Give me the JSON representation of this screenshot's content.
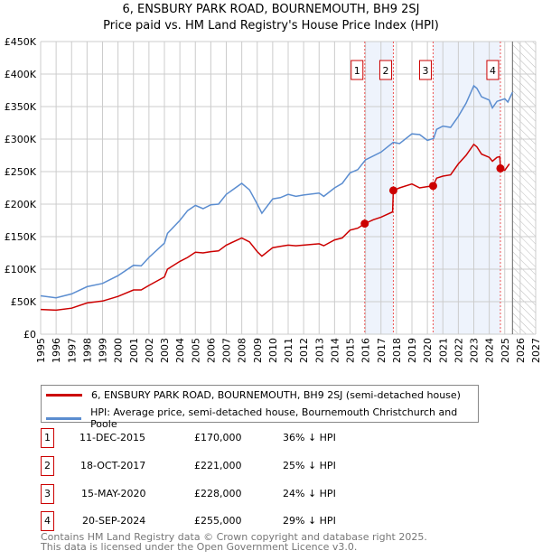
{
  "title": "6, ENSBURY PARK ROAD, BOURNEMOUTH, BH9 2SJ",
  "subtitle": "Price paid vs. HM Land Registry's House Price Index (HPI)",
  "chart_data": {
    "type": "line",
    "xlim": [
      1995,
      2027
    ],
    "ylim": [
      0,
      450000
    ],
    "yticks": [
      "£0",
      "£50K",
      "£100K",
      "£150K",
      "£200K",
      "£250K",
      "£300K",
      "£350K",
      "£400K",
      "£450K"
    ],
    "xticks": [
      "1995",
      "1996",
      "1997",
      "1998",
      "1999",
      "2000",
      "2001",
      "2002",
      "2003",
      "2004",
      "2005",
      "2006",
      "2007",
      "2008",
      "2009",
      "2010",
      "2011",
      "2012",
      "2013",
      "2014",
      "2015",
      "2016",
      "2017",
      "2018",
      "2019",
      "2020",
      "2021",
      "2022",
      "2023",
      "2024",
      "2025",
      "2026",
      "2027"
    ],
    "forecast_start": 2025.5,
    "shaded": [
      [
        2015.95,
        2017.8
      ],
      [
        2020.37,
        2024.72
      ]
    ],
    "series": [
      {
        "name": "6, ENSBURY PARK ROAD, BOURNEMOUTH, BH9 2SJ (semi-detached house)",
        "color": "#cc0000",
        "x": [
          1995,
          1996,
          1997,
          1998,
          1999,
          2000,
          2001,
          2001.5,
          2002,
          2003,
          2003.2,
          2004,
          2004.5,
          2005,
          2005.5,
          2006,
          2006.5,
          2007,
          2008,
          2008.5,
          2009,
          2009.3,
          2010,
          2010.5,
          2011,
          2011.5,
          2012,
          2013,
          2013.3,
          2014,
          2014.5,
          2015,
          2015.5,
          2015.95,
          2016.5,
          2017,
          2017.75,
          2017.8,
          2018.2,
          2019,
          2019.5,
          2020,
          2020.37,
          2020.6,
          2021,
          2021.5,
          2022,
          2022.5,
          2023,
          2023.2,
          2023.5,
          2024,
          2024.2,
          2024.5,
          2024.68,
          2024.72,
          2025,
          2025.3
        ],
        "y": [
          38000,
          37000,
          40000,
          48000,
          51000,
          58000,
          68000,
          68000,
          75000,
          88000,
          100000,
          112000,
          118000,
          126000,
          125000,
          127000,
          128000,
          137000,
          148000,
          142000,
          127000,
          120000,
          133000,
          135000,
          137000,
          136000,
          137000,
          139000,
          136000,
          145000,
          148000,
          160000,
          163000,
          170000,
          176000,
          180000,
          188000,
          221000,
          225000,
          231000,
          225000,
          227000,
          228000,
          240000,
          243000,
          245000,
          262000,
          275000,
          292000,
          288000,
          277000,
          272000,
          266000,
          272000,
          273000,
          255000,
          252000,
          262000
        ]
      },
      {
        "name": "HPI: Average price, semi-detached house, Bournemouth Christchurch and Poole",
        "color": "#5b8dd0",
        "x": [
          1995,
          1996,
          1997,
          1998,
          1999,
          2000,
          2001,
          2001.5,
          2002,
          2003,
          2003.2,
          2004,
          2004.5,
          2005,
          2005.5,
          2006,
          2006.5,
          2007,
          2008,
          2008.5,
          2009,
          2009.3,
          2010,
          2010.5,
          2011,
          2011.5,
          2012,
          2013,
          2013.3,
          2014,
          2014.5,
          2015,
          2015.5,
          2016,
          2017,
          2017.8,
          2018.2,
          2019,
          2019.5,
          2020,
          2020.4,
          2020.6,
          2021,
          2021.5,
          2022,
          2022.5,
          2023,
          2023.2,
          2023.5,
          2024,
          2024.2,
          2024.5,
          2025,
          2025.2,
          2025.5
        ],
        "y": [
          59000,
          56000,
          62000,
          73000,
          78000,
          90000,
          106000,
          105000,
          118000,
          140000,
          155000,
          175000,
          190000,
          198000,
          193000,
          199000,
          200000,
          215000,
          232000,
          222000,
          200000,
          186000,
          208000,
          210000,
          215000,
          212000,
          214000,
          217000,
          212000,
          225000,
          232000,
          248000,
          253000,
          268000,
          280000,
          295000,
          293000,
          308000,
          307000,
          298000,
          301000,
          315000,
          320000,
          318000,
          335000,
          355000,
          382000,
          378000,
          365000,
          360000,
          348000,
          358000,
          362000,
          357000,
          372000
        ]
      }
    ],
    "markers": [
      {
        "label": "1",
        "x": 2015.95,
        "y": 170000
      },
      {
        "label": "2",
        "x": 2017.8,
        "y": 221000
      },
      {
        "label": "3",
        "x": 2020.37,
        "y": 228000
      },
      {
        "label": "4",
        "x": 2024.72,
        "y": 255000
      }
    ]
  },
  "table": [
    {
      "num": "1",
      "date": "11-DEC-2015",
      "price": "£170,000",
      "hpi": "36% ↓ HPI"
    },
    {
      "num": "2",
      "date": "18-OCT-2017",
      "price": "£221,000",
      "hpi": "25% ↓ HPI"
    },
    {
      "num": "3",
      "date": "15-MAY-2020",
      "price": "£228,000",
      "hpi": "24% ↓ HPI"
    },
    {
      "num": "4",
      "date": "20-SEP-2024",
      "price": "£255,000",
      "hpi": "29% ↓ HPI"
    }
  ],
  "footer": {
    "line1": "Contains HM Land Registry data © Crown copyright and database right 2025.",
    "line2": "This data is licensed under the Open Government Licence v3.0."
  }
}
